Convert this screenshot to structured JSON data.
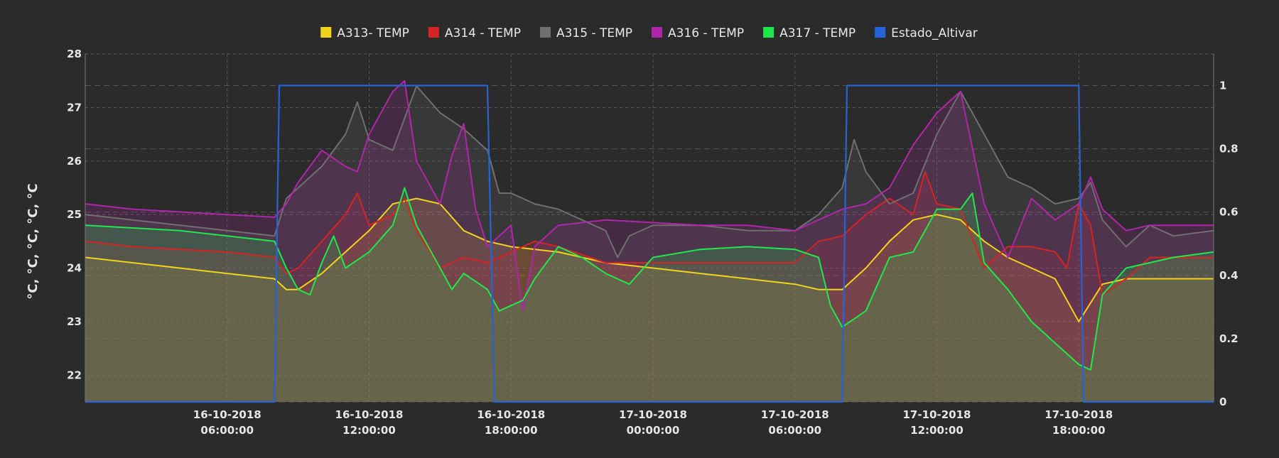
{
  "chart_data": {
    "type": "line",
    "ylabel": "°C, °C, °C, °C, °C",
    "x_tick_labels": [
      {
        "date": "16-10-2018",
        "time": "06:00:00",
        "h": 6
      },
      {
        "date": "16-10-2018",
        "time": "12:00:00",
        "h": 12
      },
      {
        "date": "16-10-2018",
        "time": "18:00:00",
        "h": 18
      },
      {
        "date": "17-10-2018",
        "time": "00:00:00",
        "h": 24
      },
      {
        "date": "17-10-2018",
        "time": "06:00:00",
        "h": 30
      },
      {
        "date": "17-10-2018",
        "time": "12:00:00",
        "h": 36
      },
      {
        "date": "17-10-2018",
        "time": "18:00:00",
        "h": 42
      }
    ],
    "x_range_hours": [
      0,
      47.7
    ],
    "ylim_left": [
      21.5,
      28
    ],
    "ylim_right": [
      0,
      1.1
    ],
    "y_ticks_left": [
      22,
      23,
      24,
      25,
      26,
      27,
      28
    ],
    "y_ticks_right": [
      {
        "v": 0,
        "label": "0"
      },
      {
        "v": 0.2,
        "label": "0.2"
      },
      {
        "v": 0.4,
        "label": "0.4"
      },
      {
        "v": 0.6,
        "label": "0.6"
      },
      {
        "v": 0.8,
        "label": "0.8"
      },
      {
        "v": 1,
        "label": "1"
      }
    ],
    "grid": true,
    "legend_position": "top-center",
    "series": [
      {
        "name": "A313- TEMP",
        "color": "#f2d31b",
        "axis": "left",
        "points": [
          [
            0,
            24.2
          ],
          [
            2,
            24.1
          ],
          [
            4,
            24.0
          ],
          [
            6,
            23.9
          ],
          [
            8,
            23.8
          ],
          [
            8.5,
            23.6
          ],
          [
            9,
            23.6
          ],
          [
            10,
            23.9
          ],
          [
            11,
            24.3
          ],
          [
            12,
            24.7
          ],
          [
            13,
            25.2
          ],
          [
            14,
            25.3
          ],
          [
            15,
            25.2
          ],
          [
            16,
            24.7
          ],
          [
            17,
            24.5
          ],
          [
            18,
            24.4
          ],
          [
            20,
            24.3
          ],
          [
            22,
            24.1
          ],
          [
            24,
            24.0
          ],
          [
            26,
            23.9
          ],
          [
            28,
            23.8
          ],
          [
            30,
            23.7
          ],
          [
            31,
            23.6
          ],
          [
            32,
            23.6
          ],
          [
            33,
            24.0
          ],
          [
            34,
            24.5
          ],
          [
            35,
            24.9
          ],
          [
            36,
            25.0
          ],
          [
            37,
            24.9
          ],
          [
            38,
            24.5
          ],
          [
            39,
            24.2
          ],
          [
            40,
            24.0
          ],
          [
            41,
            23.8
          ],
          [
            42,
            23.0
          ],
          [
            43,
            23.7
          ],
          [
            44,
            23.8
          ],
          [
            46,
            23.8
          ],
          [
            47.7,
            23.8
          ]
        ]
      },
      {
        "name": "A314 - TEMP",
        "color": "#d42424",
        "axis": "left",
        "points": [
          [
            0,
            24.5
          ],
          [
            2,
            24.4
          ],
          [
            4,
            24.35
          ],
          [
            6,
            24.3
          ],
          [
            8,
            24.2
          ],
          [
            8.5,
            23.9
          ],
          [
            9,
            24.0
          ],
          [
            10,
            24.5
          ],
          [
            11,
            25.0
          ],
          [
            11.5,
            25.4
          ],
          [
            12,
            24.8
          ],
          [
            13,
            25.0
          ],
          [
            13.5,
            25.3
          ],
          [
            14,
            24.7
          ],
          [
            15,
            24.0
          ],
          [
            16,
            24.2
          ],
          [
            17,
            24.1
          ],
          [
            18,
            24.3
          ],
          [
            19,
            24.5
          ],
          [
            20,
            24.4
          ],
          [
            22,
            24.1
          ],
          [
            24,
            24.1
          ],
          [
            26,
            24.1
          ],
          [
            28,
            24.1
          ],
          [
            30,
            24.1
          ],
          [
            31,
            24.5
          ],
          [
            32,
            24.6
          ],
          [
            33,
            25.0
          ],
          [
            34,
            25.3
          ],
          [
            35,
            25.0
          ],
          [
            35.5,
            25.8
          ],
          [
            36,
            25.2
          ],
          [
            37,
            25.1
          ],
          [
            38,
            24.0
          ],
          [
            39,
            24.4
          ],
          [
            40,
            24.4
          ],
          [
            41,
            24.3
          ],
          [
            41.5,
            24.0
          ],
          [
            42,
            25.2
          ],
          [
            42.5,
            24.8
          ],
          [
            43,
            23.5
          ],
          [
            44,
            23.8
          ],
          [
            45,
            24.2
          ],
          [
            46,
            24.2
          ],
          [
            47.7,
            24.2
          ]
        ]
      },
      {
        "name": "A315 - TEMP",
        "color": "#6f6f6f",
        "axis": "left",
        "points": [
          [
            0,
            25.0
          ],
          [
            2,
            24.9
          ],
          [
            4,
            24.8
          ],
          [
            6,
            24.7
          ],
          [
            8,
            24.6
          ],
          [
            8.5,
            25.3
          ],
          [
            9,
            25.5
          ],
          [
            10,
            25.9
          ],
          [
            11,
            26.5
          ],
          [
            11.5,
            27.1
          ],
          [
            12,
            26.4
          ],
          [
            13,
            26.2
          ],
          [
            14,
            27.4
          ],
          [
            15,
            26.9
          ],
          [
            16,
            26.6
          ],
          [
            17,
            26.2
          ],
          [
            17.5,
            25.4
          ],
          [
            18,
            25.4
          ],
          [
            19,
            25.2
          ],
          [
            20,
            25.1
          ],
          [
            21,
            24.9
          ],
          [
            22,
            24.7
          ],
          [
            22.5,
            24.2
          ],
          [
            23,
            24.6
          ],
          [
            24,
            24.8
          ],
          [
            26,
            24.8
          ],
          [
            28,
            24.7
          ],
          [
            30,
            24.7
          ],
          [
            31,
            25.0
          ],
          [
            32,
            25.5
          ],
          [
            32.5,
            26.4
          ],
          [
            33,
            25.8
          ],
          [
            34,
            25.2
          ],
          [
            35,
            25.4
          ],
          [
            36,
            26.5
          ],
          [
            37,
            27.3
          ],
          [
            38,
            26.5
          ],
          [
            39,
            25.7
          ],
          [
            40,
            25.5
          ],
          [
            41,
            25.2
          ],
          [
            42,
            25.3
          ],
          [
            42.5,
            25.6
          ],
          [
            43,
            24.9
          ],
          [
            44,
            24.4
          ],
          [
            45,
            24.8
          ],
          [
            46,
            24.6
          ],
          [
            47.7,
            24.7
          ]
        ]
      },
      {
        "name": "A316 - TEMP",
        "color": "#b026a8",
        "axis": "left",
        "points": [
          [
            0,
            25.2
          ],
          [
            2,
            25.1
          ],
          [
            4,
            25.05
          ],
          [
            6,
            25.0
          ],
          [
            8,
            24.95
          ],
          [
            8.5,
            25.2
          ],
          [
            9,
            25.6
          ],
          [
            10,
            26.2
          ],
          [
            11,
            25.9
          ],
          [
            11.5,
            25.8
          ],
          [
            12,
            26.5
          ],
          [
            13,
            27.3
          ],
          [
            13.5,
            27.5
          ],
          [
            14,
            26.0
          ],
          [
            15,
            25.2
          ],
          [
            15.5,
            26.1
          ],
          [
            16,
            26.7
          ],
          [
            16.5,
            25.1
          ],
          [
            17,
            24.4
          ],
          [
            18,
            24.8
          ],
          [
            18.5,
            23.2
          ],
          [
            19,
            24.4
          ],
          [
            20,
            24.8
          ],
          [
            22,
            24.9
          ],
          [
            24,
            24.85
          ],
          [
            26,
            24.8
          ],
          [
            28,
            24.8
          ],
          [
            30,
            24.7
          ],
          [
            31,
            24.9
          ],
          [
            32,
            25.1
          ],
          [
            33,
            25.2
          ],
          [
            34,
            25.5
          ],
          [
            35,
            26.3
          ],
          [
            36,
            26.9
          ],
          [
            37,
            27.3
          ],
          [
            38,
            25.2
          ],
          [
            39,
            24.2
          ],
          [
            40,
            25.3
          ],
          [
            41,
            24.9
          ],
          [
            42,
            25.2
          ],
          [
            42.5,
            25.7
          ],
          [
            43,
            25.1
          ],
          [
            44,
            24.7
          ],
          [
            45,
            24.8
          ],
          [
            46,
            24.8
          ],
          [
            47.7,
            24.8
          ]
        ]
      },
      {
        "name": "A317 - TEMP",
        "color": "#1ee84a",
        "axis": "left",
        "points": [
          [
            0,
            24.8
          ],
          [
            2,
            24.75
          ],
          [
            4,
            24.7
          ],
          [
            6,
            24.6
          ],
          [
            8,
            24.5
          ],
          [
            8.5,
            24.0
          ],
          [
            9,
            23.6
          ],
          [
            9.5,
            23.5
          ],
          [
            10,
            24.1
          ],
          [
            10.5,
            24.6
          ],
          [
            11,
            24.0
          ],
          [
            12,
            24.3
          ],
          [
            13,
            24.8
          ],
          [
            13.5,
            25.5
          ],
          [
            14,
            24.8
          ],
          [
            15,
            24.0
          ],
          [
            15.5,
            23.6
          ],
          [
            16,
            23.9
          ],
          [
            17,
            23.6
          ],
          [
            17.5,
            23.2
          ],
          [
            18,
            23.3
          ],
          [
            18.5,
            23.4
          ],
          [
            19,
            23.8
          ],
          [
            20,
            24.4
          ],
          [
            21,
            24.2
          ],
          [
            22,
            23.9
          ],
          [
            23,
            23.7
          ],
          [
            24,
            24.2
          ],
          [
            26,
            24.35
          ],
          [
            28,
            24.4
          ],
          [
            30,
            24.35
          ],
          [
            31,
            24.2
          ],
          [
            31.5,
            23.3
          ],
          [
            32,
            22.9
          ],
          [
            33,
            23.2
          ],
          [
            34,
            24.2
          ],
          [
            35,
            24.3
          ],
          [
            36,
            25.1
          ],
          [
            37,
            25.1
          ],
          [
            37.5,
            25.4
          ],
          [
            38,
            24.1
          ],
          [
            39,
            23.6
          ],
          [
            40,
            23.0
          ],
          [
            41,
            22.6
          ],
          [
            42,
            22.2
          ],
          [
            42.5,
            22.1
          ],
          [
            43,
            23.5
          ],
          [
            44,
            24.0
          ],
          [
            45,
            24.1
          ],
          [
            46,
            24.2
          ],
          [
            47.7,
            24.3
          ]
        ]
      },
      {
        "name": "Estado_Altivar",
        "color": "#2563d6",
        "axis": "right",
        "points": [
          [
            0,
            0
          ],
          [
            8,
            0
          ],
          [
            8.2,
            1
          ],
          [
            17,
            1
          ],
          [
            17.3,
            0
          ],
          [
            32,
            0
          ],
          [
            32.2,
            1
          ],
          [
            42,
            1
          ],
          [
            42.2,
            0
          ],
          [
            47.7,
            0
          ]
        ]
      }
    ]
  }
}
